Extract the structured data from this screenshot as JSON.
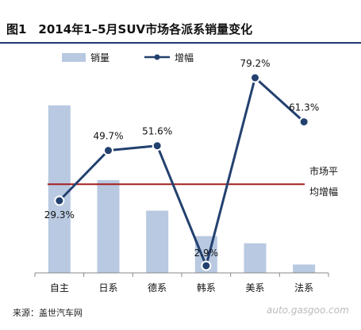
{
  "chart_data": {
    "type": "bar+line",
    "title": "图1　2014年1–5月SUV市场各派系销量变化",
    "categories": [
      "自主",
      "日系",
      "德系",
      "韩系",
      "美系",
      "法系"
    ],
    "series": [
      {
        "name": "销量",
        "type": "bar",
        "values": [
          560000,
          310000,
          208000,
          123000,
          99000,
          28000
        ]
      },
      {
        "name": "增幅",
        "type": "line",
        "values": [
          29.3,
          49.7,
          51.6,
          2.9,
          79.2,
          61.3
        ]
      }
    ],
    "data_labels": [
      "29.3%",
      "49.7%",
      "51.6%",
      "2.9%",
      "79.2%",
      "61.3%"
    ],
    "reference_line": {
      "label_line1": "市场平",
      "label_line2": "均增幅",
      "value": 36
    },
    "bar_axis_range": [
      0,
      700000
    ],
    "line_axis_range": [
      0,
      85
    ],
    "legend": {
      "position": "top",
      "bar_label": "销量",
      "line_label": "增幅"
    },
    "grid": false,
    "colors": {
      "bar": "#b8c9e1",
      "line": "#23416f",
      "reference": "#a51f1f",
      "axis": "#888888",
      "rule": "#1f3a70"
    }
  },
  "source": "来源：盖世汽车网",
  "watermark": "auto.gasgoo.com"
}
